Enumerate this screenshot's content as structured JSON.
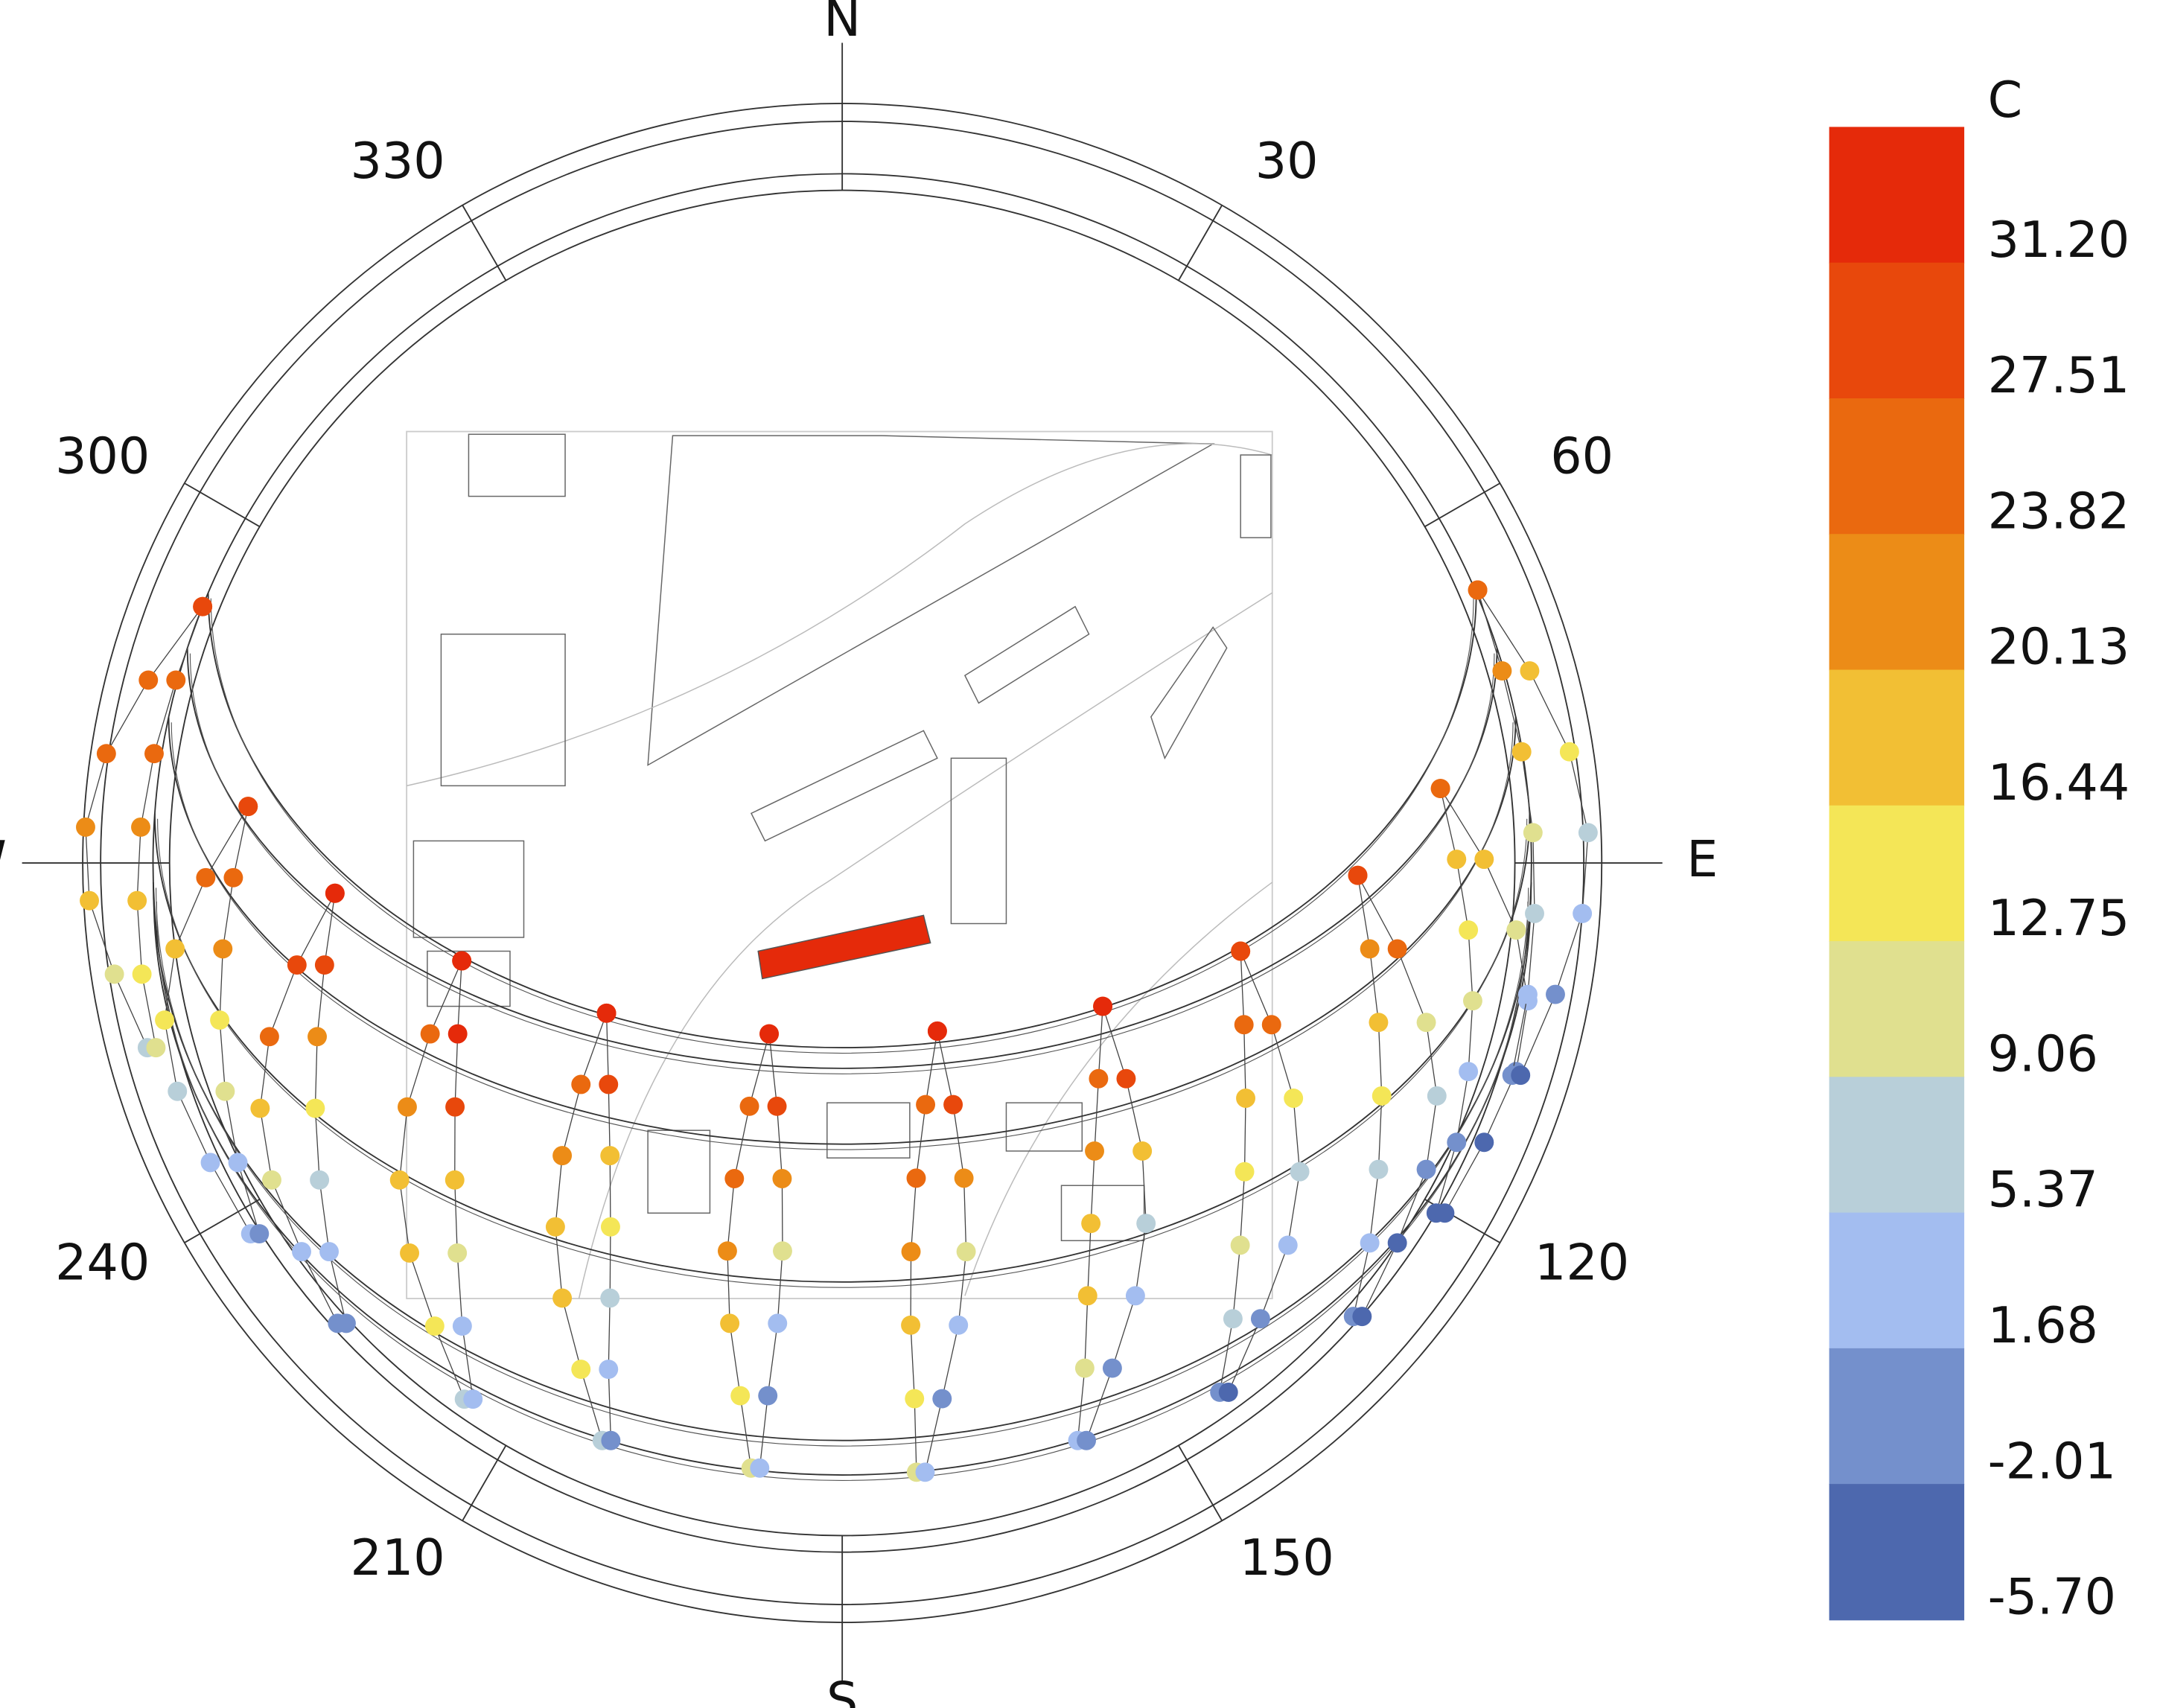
{
  "chart_data": {
    "type": "sunpath",
    "compass_labels": [
      "N",
      "E",
      "S",
      "W"
    ],
    "azimuth_labels": [
      30,
      60,
      120,
      150,
      210,
      240,
      300,
      330
    ],
    "legend": {
      "title": "C",
      "colors": [
        "#e52a0a",
        "#e8480c",
        "#ea690f",
        "#ec8c17",
        "#f2bf34",
        "#f4e657",
        "#e0e08f",
        "#b8cfd9",
        "#a3bdf0",
        "#7490cc",
        "#4d68ae"
      ],
      "ticks": [
        {
          "value": 31.2,
          "label": "31.20"
        },
        27.51,
        23.82,
        20.13,
        16.44,
        12.75,
        9.06,
        5.37,
        1.68,
        -2.01,
        {
          "value": -5.7,
          "label": "-5.70"
        }
      ]
    },
    "loops": [
      [
        28,
        27,
        26,
        22,
        17,
        12,
        8,
        10,
        14,
        18,
        22,
        25,
        27,
        29
      ],
      [
        27,
        24,
        20,
        14,
        9,
        5,
        2,
        1,
        4,
        10,
        16,
        22,
        26,
        28
      ],
      [
        26,
        28,
        25,
        18,
        10,
        4,
        1,
        0,
        3,
        8,
        15,
        22,
        30,
        32
      ],
      [
        27,
        25,
        22,
        20,
        18,
        14,
        6,
        2,
        3,
        10,
        17,
        28,
        32,
        33
      ],
      [
        26,
        24,
        22,
        20,
        19,
        16,
        8,
        1,
        2,
        6,
        13,
        20,
        28,
        32
      ],
      [
        27,
        25,
        24,
        22,
        20,
        15,
        10,
        2,
        1,
        5,
        12,
        22,
        30,
        33
      ],
      [
        28,
        26,
        24,
        22,
        20,
        16,
        10,
        2,
        1,
        4,
        12,
        22,
        31,
        32
      ],
      [
        27,
        25,
        22,
        20,
        17,
        10,
        4,
        -1,
        0,
        3,
        8,
        18,
        30,
        32
      ],
      [
        26,
        24,
        20,
        16,
        12,
        6,
        1,
        -3,
        -2,
        2,
        6,
        14,
        26,
        31
      ],
      [
        25,
        22,
        18,
        14,
        8,
        3,
        -2,
        -4,
        -3,
        1,
        6,
        12,
        24,
        28
      ],
      [
        24,
        20,
        16,
        10,
        5,
        0,
        -3,
        -5,
        -4,
        0,
        4,
        10,
        18,
        24
      ],
      [
        26,
        22,
        18,
        12,
        6,
        2,
        -1,
        -3,
        0,
        3,
        8,
        14,
        20,
        24
      ]
    ]
  }
}
